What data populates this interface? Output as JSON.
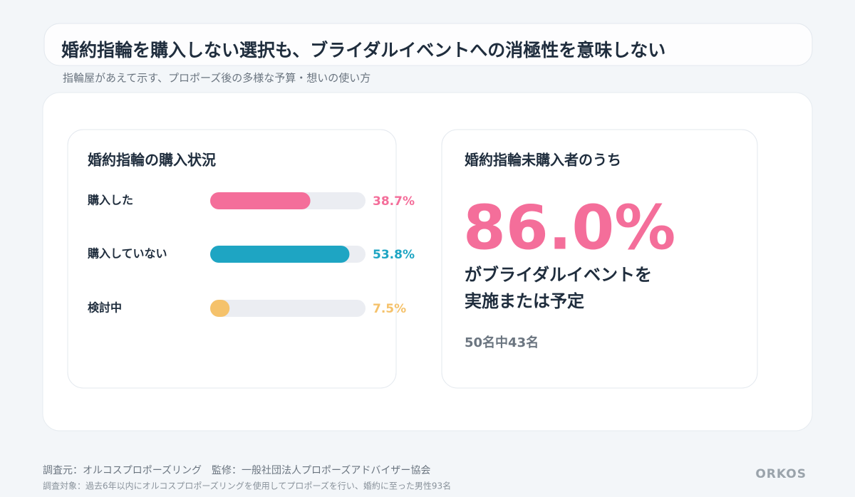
{
  "header": {
    "title": "婚約指輪を購入しない選択も、ブライダルイベントへの消極性を意味しない",
    "subtitle": "指輪屋があえて示す、プロポーズ後の多様な予算・想いの使い方"
  },
  "chart_data": {
    "type": "bar",
    "orientation": "horizontal",
    "title": "婚約指輪の購入状況",
    "categories": [
      "購入した",
      "購入していない",
      "検討中"
    ],
    "values": [
      38.7,
      53.8,
      7.5
    ],
    "value_labels": [
      "38.7%",
      "53.8%",
      "7.5%"
    ],
    "colors": [
      "#f46e9a",
      "#1ea5c3",
      "#f5c26b"
    ],
    "xlim": [
      0,
      60
    ]
  },
  "stat": {
    "title": "婚約指輪未購入者のうち",
    "value": "86.0%",
    "lines": [
      "がブライダルイベントを",
      "実施または予定"
    ],
    "note": "50名中43名"
  },
  "footer": {
    "source": "調査元：オルコスプロポーズリング　監修：一般社団法人プロポーズアドバイザー協会",
    "target": "調査対象：過去6年以内にオルコスプロポーズリングを使用してプロポーズを行い、婚約に至った男性93名",
    "brand": "ORKOS"
  }
}
